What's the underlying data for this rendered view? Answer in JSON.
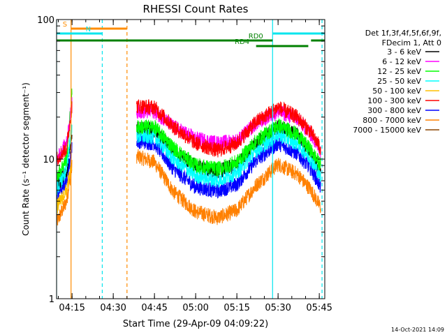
{
  "chart_data": {
    "type": "line",
    "title": "RHESSI Count Rates",
    "xlabel": "Start Time (29-Apr-09 04:09:22)",
    "ylabel": "Count Rate (s⁻¹ detector segment⁻¹)",
    "y_scale": "log",
    "ylim": [
      1,
      100
    ],
    "xlim": [
      "04:09:22",
      "05:47:00"
    ],
    "x_ticks": [
      "04:15",
      "04:30",
      "04:45",
      "05:00",
      "05:15",
      "05:30",
      "05:45"
    ],
    "y_ticks": [
      "1",
      "10",
      "100"
    ],
    "grid": false,
    "legend_position": "right",
    "legend_header": [
      "Det 1f,3f,4f,5f,6f,9f,",
      "FDecim 1, Att 0"
    ],
    "series": [
      {
        "name": "3 - 6 keV",
        "color": "#000000",
        "x": [
          "04:09:22",
          "04:13:00",
          "04:15:00",
          "04:38:30",
          "04:45:00",
          "04:52:00",
          "05:00:00",
          "05:08:00",
          "05:15:00",
          "05:22:00",
          "05:30:00",
          "05:37:00",
          "05:42:00",
          "05:45:30"
        ],
        "y": [
          6.5,
          8.0,
          16.0,
          16.5,
          16.0,
          11.5,
          8.8,
          8.2,
          9.0,
          13.0,
          17.0,
          15.0,
          11.0,
          8.0
        ]
      },
      {
        "name": "6 - 12 keV",
        "color": "#ff00ff",
        "x": [
          "04:09:22",
          "04:13:00",
          "04:15:00",
          "04:38:30",
          "04:45:00",
          "04:52:00",
          "05:00:00",
          "05:08:00",
          "05:15:00",
          "05:22:00",
          "05:30:00",
          "05:37:00",
          "05:42:00",
          "05:45:30"
        ],
        "y": [
          10.0,
          13.0,
          25.0,
          22.0,
          22.0,
          17.0,
          14.0,
          13.0,
          13.5,
          18.0,
          22.0,
          19.5,
          15.0,
          11.5
        ]
      },
      {
        "name": "12 - 25 keV",
        "color": "#00ff00",
        "x": [
          "04:09:22",
          "04:13:00",
          "04:15:00",
          "04:38:30",
          "04:45:00",
          "04:52:00",
          "05:00:00",
          "05:08:00",
          "05:15:00",
          "05:22:00",
          "05:30:00",
          "05:37:00",
          "05:42:00",
          "05:45:30"
        ],
        "y": [
          7.5,
          10.0,
          30.0,
          17.0,
          17.0,
          12.0,
          9.0,
          8.5,
          9.5,
          13.5,
          17.5,
          15.0,
          11.5,
          9.0
        ]
      },
      {
        "name": "25 - 50 keV",
        "color": "#00ffff",
        "x": [
          "04:09:22",
          "04:13:00",
          "04:15:00",
          "04:38:30",
          "04:45:00",
          "04:52:00",
          "05:00:00",
          "05:08:00",
          "05:15:00",
          "05:22:00",
          "05:30:00",
          "05:37:00",
          "05:42:00",
          "05:45:30"
        ],
        "y": [
          6.0,
          8.5,
          18.0,
          14.5,
          14.5,
          10.0,
          7.6,
          7.0,
          8.0,
          11.5,
          15.0,
          13.0,
          10.0,
          7.5
        ]
      },
      {
        "name": "50 - 100 keV",
        "color": "#ffbf00",
        "x": [
          "04:09:22",
          "04:13:00",
          "04:15:00"
        ],
        "y": [
          4.5,
          6.0,
          9.0
        ]
      },
      {
        "name": "100 - 300 keV",
        "color": "#ff0000",
        "x": [
          "04:09:22",
          "04:13:00",
          "04:15:00",
          "04:38:30",
          "04:45:00",
          "04:52:00",
          "05:00:00",
          "05:08:00",
          "05:15:00",
          "05:22:00",
          "05:30:00",
          "05:37:00",
          "05:42:00",
          "05:45:30"
        ],
        "y": [
          10.0,
          12.0,
          24.0,
          24.0,
          23.5,
          17.0,
          13.0,
          11.5,
          13.0,
          18.5,
          23.5,
          20.0,
          15.5,
          12.0
        ]
      },
      {
        "name": "300 - 800 keV",
        "color": "#0000ff",
        "x": [
          "04:09:22",
          "04:13:00",
          "04:15:00",
          "04:38:30",
          "04:45:00",
          "04:52:00",
          "05:00:00",
          "05:08:00",
          "05:15:00",
          "05:22:00",
          "05:30:00",
          "05:37:00",
          "05:42:00",
          "05:45:30"
        ],
        "y": [
          5.5,
          7.0,
          12.0,
          13.5,
          13.0,
          8.5,
          6.3,
          5.9,
          6.6,
          9.8,
          13.0,
          11.0,
          8.5,
          6.3
        ]
      },
      {
        "name": "800 - 7000 keV",
        "color": "#ff8000",
        "x": [
          "04:09:22",
          "04:13:00",
          "04:15:00",
          "04:38:30",
          "04:45:00",
          "04:52:00",
          "05:00:00",
          "05:08:00",
          "05:15:00",
          "05:22:00",
          "05:30:00",
          "05:37:00",
          "05:42:00",
          "05:45:30"
        ],
        "y": [
          3.5,
          5.0,
          9.0,
          10.5,
          9.5,
          5.8,
          4.2,
          3.8,
          4.3,
          6.5,
          9.2,
          7.8,
          6.0,
          4.5
        ]
      },
      {
        "name": "7000 - 15000 keV",
        "color": "#8b4500",
        "x": [],
        "y": []
      }
    ],
    "vertical_markers": [
      {
        "time": "04:09:22",
        "color": "#00e5ee",
        "style": "solid"
      },
      {
        "time": "04:14:38",
        "color": "#ff8c00",
        "style": "solid"
      },
      {
        "time": "04:26:00",
        "color": "#00e5ee",
        "style": "dashed"
      },
      {
        "time": "04:35:00",
        "color": "#ff8c00",
        "style": "dashed"
      },
      {
        "time": "05:28:00",
        "color": "#00e5ee",
        "style": "solid"
      },
      {
        "time": "05:46:00",
        "color": "#00e5ee",
        "style": "dashed"
      }
    ],
    "flag_bars": [
      {
        "label": "S",
        "color": "#ff8c00",
        "start": "04:14:38",
        "end": "04:35:00",
        "level": 1
      },
      {
        "label": "N",
        "color": "#00e5ee",
        "start": "04:09:22",
        "end": "04:26:00",
        "level": 2
      },
      {
        "label": "",
        "color": "#00e5ee",
        "start": "05:28:00",
        "end": "05:47:00",
        "level": 2
      },
      {
        "label": "RD0",
        "color": "#008000",
        "start": "04:09:22",
        "end": "05:28:00",
        "level": 3
      },
      {
        "label": "",
        "color": "#008000",
        "start": "05:42:00",
        "end": "05:47:00",
        "level": 3
      },
      {
        "label": "RD4",
        "color": "#008000",
        "start": "05:22:00",
        "end": "05:41:00",
        "level": 4
      }
    ]
  },
  "footer": {
    "timestamp": "14-Oct-2021 14:09"
  }
}
